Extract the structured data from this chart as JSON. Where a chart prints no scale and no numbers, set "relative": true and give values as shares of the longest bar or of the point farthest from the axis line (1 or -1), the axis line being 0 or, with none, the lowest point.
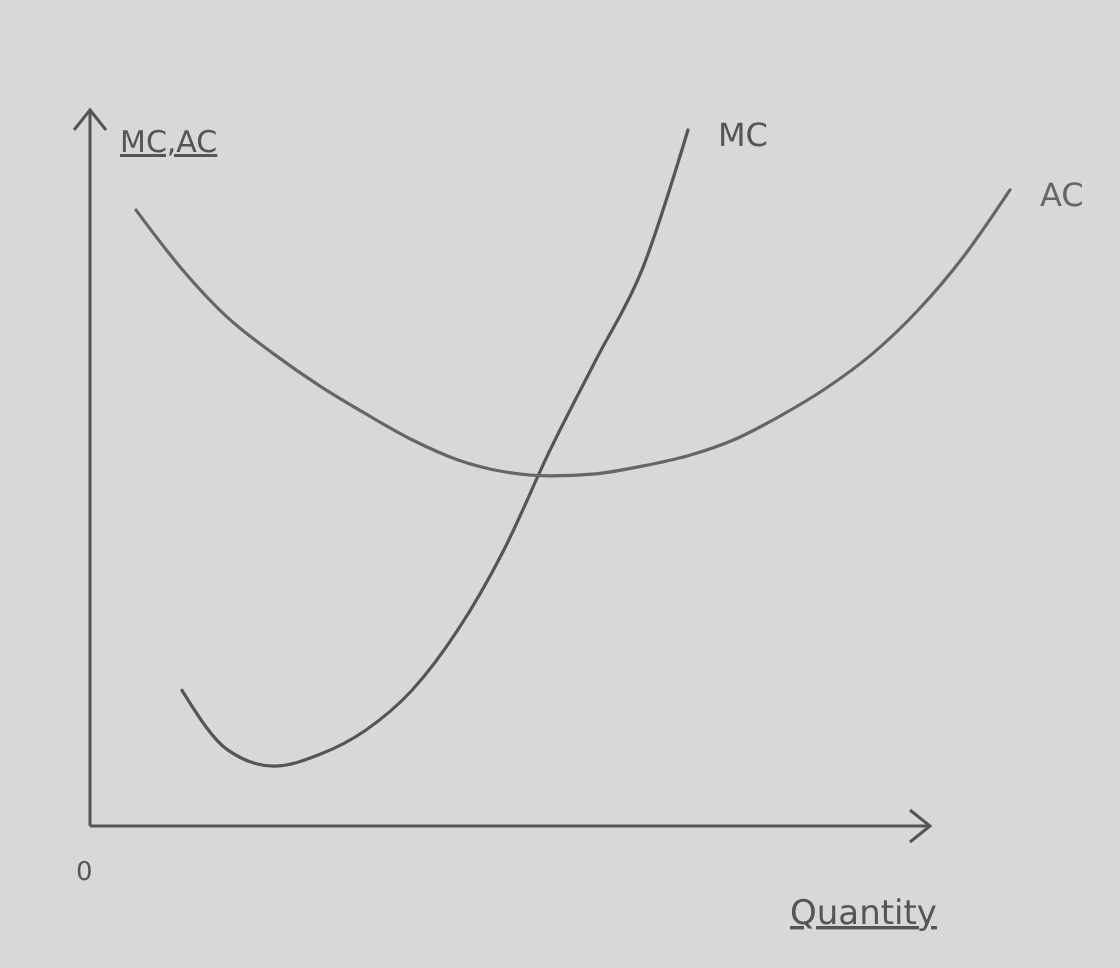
{
  "chart_data": {
    "type": "line",
    "relative": true,
    "xlabel": "Quantity",
    "ylabel": "MC,AC",
    "annotations": [
      "0"
    ],
    "legend": false,
    "grid": false,
    "marker": "none",
    "line_style": "solid",
    "categories": [
      null,
      null,
      null,
      null,
      null,
      null,
      null,
      null,
      null,
      null,
      null,
      null,
      null,
      null,
      null,
      null,
      null,
      null,
      null,
      null,
      null
    ],
    "series": [
      {
        "name": "MC",
        "color": "#555555",
        "values": [
          null,
          null,
          0.195,
          0.109,
          0.086,
          0.103,
          0.138,
          0.195,
          0.282,
          0.397,
          0.54,
          0.67,
          0.799,
          1.0,
          null,
          null,
          null,
          null,
          null,
          null,
          null
        ]
      },
      {
        "name": "AC",
        "color": "#666666",
        "values": [
          null,
          0.885,
          0.8,
          0.73,
          0.678,
          0.632,
          0.592,
          0.555,
          0.526,
          0.509,
          0.503,
          0.506,
          0.517,
          0.532,
          0.555,
          0.589,
          0.629,
          0.678,
          0.741,
          0.819,
          0.914
        ]
      }
    ]
  }
}
